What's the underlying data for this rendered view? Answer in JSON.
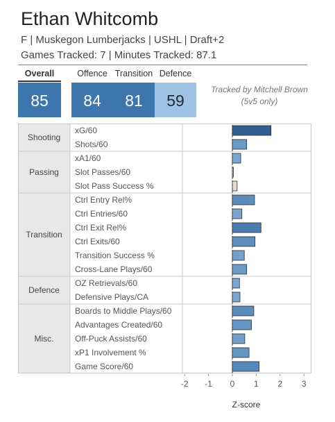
{
  "player": {
    "name": "Ethan Whitcomb",
    "subtitle": "F | Muskegon Lumberjacks | USHL | Draft+2",
    "tracked_line": "Games Tracked: 7 | Minutes Tracked: 87.1"
  },
  "summary": {
    "labels": {
      "overall": "Overall",
      "offence": "Offence",
      "transition": "Transition",
      "defence": "Defence"
    },
    "values": {
      "overall": "85",
      "offence": "84",
      "transition": "81",
      "defence": "59"
    },
    "colors": {
      "overall": "#3d75ad",
      "offence": "#3d75ad",
      "transition": "#3d75ad",
      "defence": "#9ec3e4"
    },
    "tracked_by": "Tracked by Mitchell Brown",
    "tracked_note": "(5v5 only)"
  },
  "chart_data": {
    "type": "bar",
    "orientation": "horizontal",
    "xlabel": "Z-score",
    "xlim": [
      -2.5,
      3.05
    ],
    "xticks": [
      -2,
      -1,
      0,
      1,
      2,
      3
    ],
    "grid": false,
    "zero_line": "dashed",
    "groups": [
      {
        "name": "Shooting",
        "items": [
          {
            "label": "xG/60",
            "value": 1.62,
            "color": "#2e5f8f"
          },
          {
            "label": "Shots/60",
            "value": 0.6,
            "color": "#6b9bc7"
          }
        ]
      },
      {
        "name": "Passing",
        "items": [
          {
            "label": "xA1/60",
            "value": 0.35,
            "color": "#7aa6cf"
          },
          {
            "label": "Slot Passes/60",
            "value": 0.04,
            "color": "#cfd8e0"
          },
          {
            "label": "Slot Pass Success %",
            "value": 0.2,
            "color": "#ead7d1"
          }
        ]
      },
      {
        "name": "Transition",
        "items": [
          {
            "label": "Ctrl Entry Rel%",
            "value": 0.93,
            "color": "#5c8dbd"
          },
          {
            "label": "Ctrl Entries/60",
            "value": 0.4,
            "color": "#78a4cd"
          },
          {
            "label": "Ctrl Exit Rel%",
            "value": 1.2,
            "color": "#4a7cb0"
          },
          {
            "label": "Ctrl Exits/60",
            "value": 0.95,
            "color": "#5c8dbd"
          },
          {
            "label": "Transition Success %",
            "value": 0.5,
            "color": "#74a1cb"
          },
          {
            "label": "Cross-Lane Plays/60",
            "value": 0.6,
            "color": "#6b9bc7"
          }
        ]
      },
      {
        "name": "Defence",
        "items": [
          {
            "label": "OZ Retrievals/60",
            "value": 0.3,
            "color": "#7aa6cf"
          },
          {
            "label": "Defensive Plays/CA",
            "value": 0.32,
            "color": "#7aa6cf"
          }
        ]
      },
      {
        "name": "Misc.",
        "items": [
          {
            "label": "Boards to Middle Plays/60",
            "value": 0.9,
            "color": "#5c8dbd"
          },
          {
            "label": "Advantages Created/60",
            "value": 0.8,
            "color": "#6497c3"
          },
          {
            "label": "Off-Puck Assists/60",
            "value": 0.52,
            "color": "#72a0ca"
          },
          {
            "label": "xP1 Involvement %",
            "value": 0.7,
            "color": "#6497c3"
          },
          {
            "label": "Game Score/60",
            "value": 1.12,
            "color": "#5388b9"
          }
        ]
      }
    ]
  }
}
